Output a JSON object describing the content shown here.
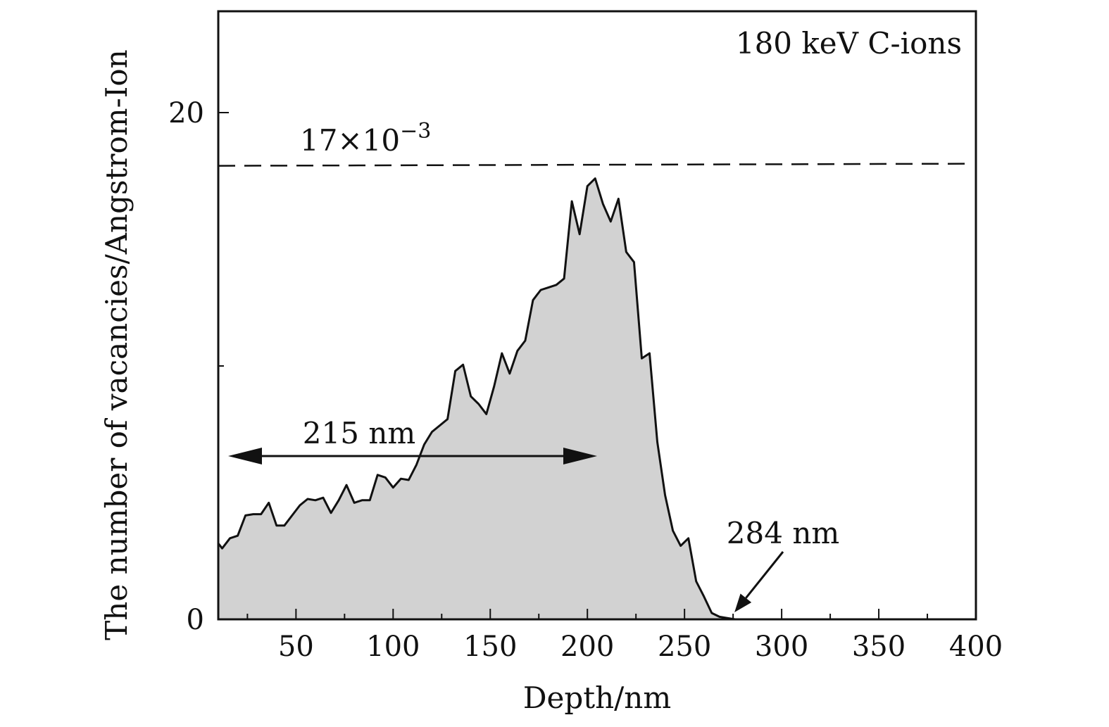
{
  "chart_data": {
    "type": "area",
    "title": "",
    "xlabel": "Depth/nm",
    "ylabel": "The number of vacancies/Angstrom-Ion",
    "xlim": [
      10,
      400
    ],
    "ylim": [
      0,
      24
    ],
    "xticks": [
      50,
      100,
      150,
      200,
      250,
      300,
      350,
      400
    ],
    "xtick_labels": [
      "50",
      "100",
      "150",
      "200",
      "250",
      "300",
      "350",
      "400"
    ],
    "xminor_ticks": [
      25,
      75,
      125,
      175,
      225,
      275,
      325,
      375
    ],
    "yticks": [
      0,
      20
    ],
    "ytick_labels": [
      "0",
      "20"
    ],
    "yminor_ticks": [
      10
    ],
    "grid": false,
    "fill_color": "#d2d2d2",
    "line_color": "#111111",
    "series": [
      {
        "name": "",
        "x": [
          10,
          12,
          16,
          20,
          24,
          28,
          32,
          36,
          40,
          44,
          48,
          52,
          56,
          60,
          64,
          68,
          72,
          76,
          80,
          84,
          88,
          92,
          96,
          100,
          104,
          108,
          112,
          116,
          120,
          124,
          128,
          132,
          136,
          140,
          144,
          148,
          152,
          156,
          160,
          164,
          168,
          172,
          176,
          180,
          184,
          188,
          192,
          196,
          200,
          204,
          208,
          212,
          216,
          220,
          224,
          228,
          232,
          236,
          240,
          244,
          248,
          252,
          256,
          260,
          264,
          268,
          272,
          276,
          280,
          400
        ],
        "y": [
          3.0,
          2.8,
          3.2,
          3.3,
          4.1,
          4.15,
          4.15,
          4.6,
          3.7,
          3.7,
          4.1,
          4.5,
          4.75,
          4.7,
          4.8,
          4.2,
          4.7,
          5.3,
          4.6,
          4.7,
          4.7,
          5.7,
          5.6,
          5.2,
          5.55,
          5.5,
          6.1,
          6.9,
          7.4,
          7.65,
          7.9,
          9.8,
          10.05,
          8.8,
          8.5,
          8.1,
          9.2,
          10.5,
          9.7,
          10.6,
          11.0,
          12.6,
          13.0,
          13.1,
          13.2,
          13.45,
          16.5,
          15.2,
          17.1,
          17.4,
          16.4,
          15.7,
          16.6,
          14.5,
          14.1,
          10.3,
          10.5,
          7.0,
          4.9,
          3.5,
          2.9,
          3.2,
          1.5,
          0.9,
          0.25,
          0.1,
          0.05,
          0.0,
          0.0,
          0.0
        ]
      }
    ],
    "reference_line": {
      "y": 17.9,
      "style": "dashed"
    },
    "annotations": {
      "ion_label": "180 keV C-ions",
      "ref_label_base": "17×10",
      "ref_label_exp": "−3",
      "range_label": "215 nm",
      "range_arrow": {
        "from": 10,
        "to": 205
      },
      "end_label": "284 nm",
      "end_arrow_target": {
        "x": 275,
        "y": 0
      }
    }
  }
}
